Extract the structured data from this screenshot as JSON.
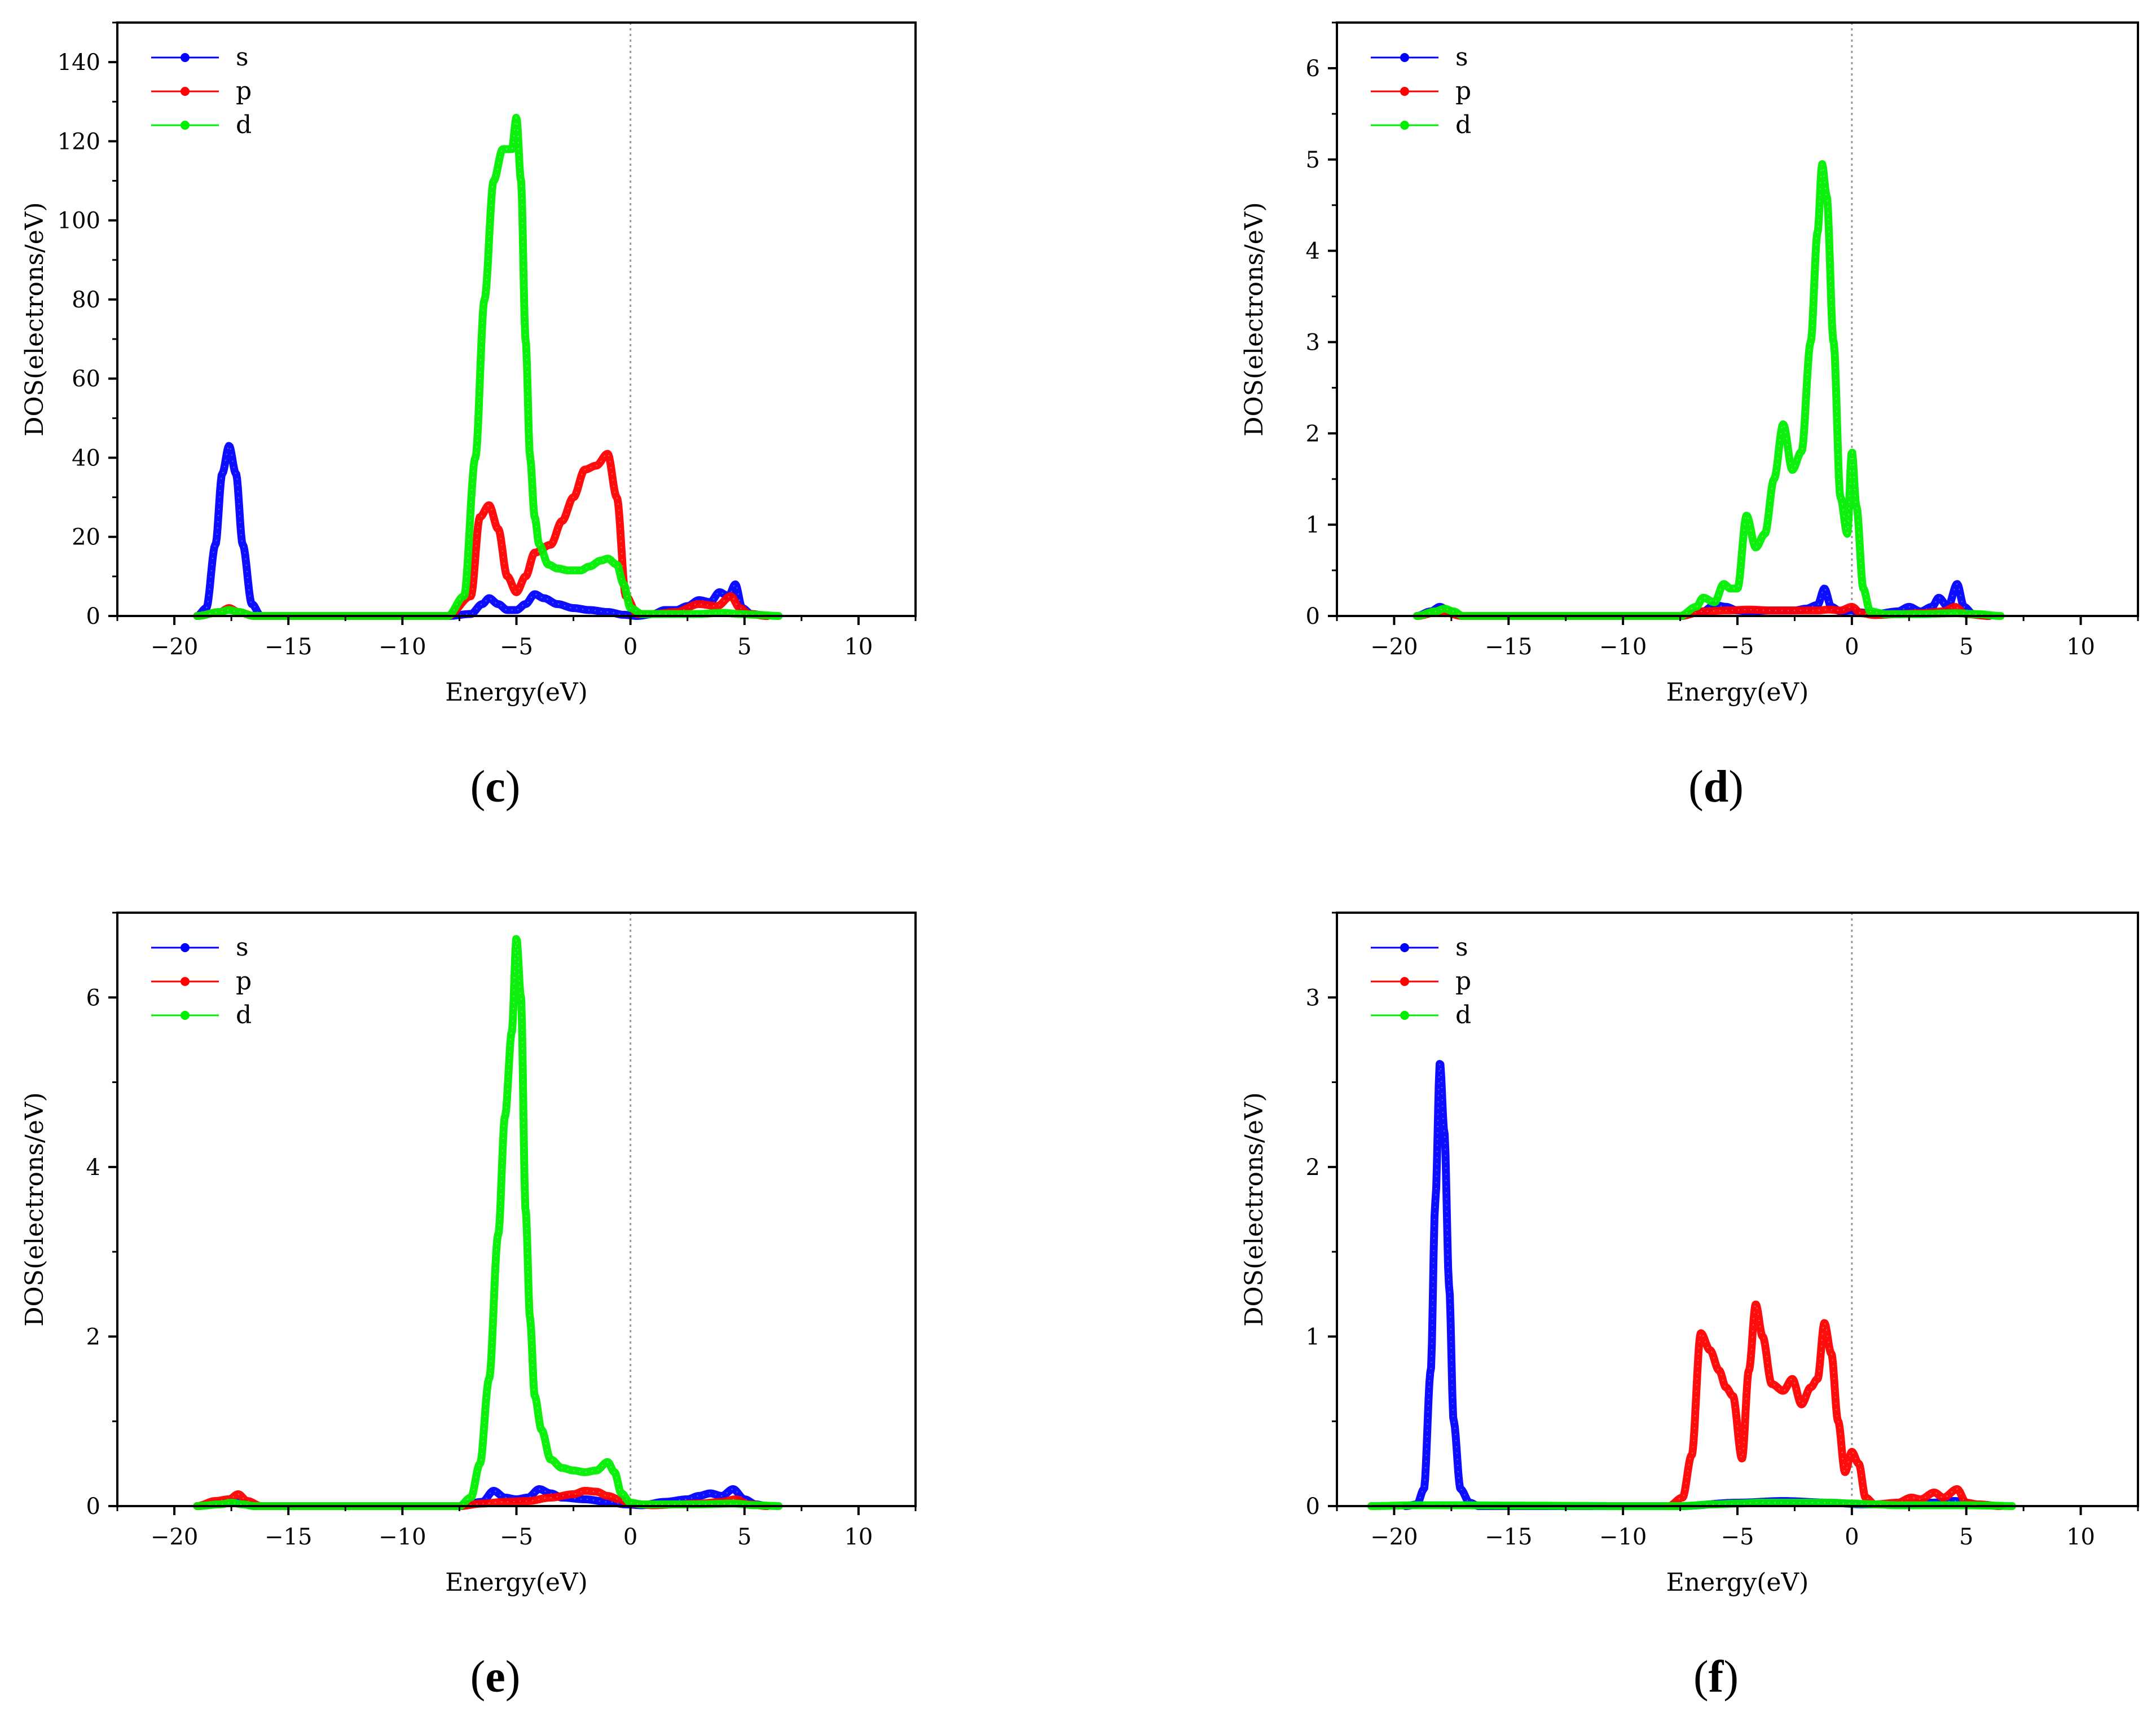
{
  "chart_data": [
    {
      "id": "c",
      "type": "line",
      "caption_letter": "c",
      "xlabel": "Energy(eV)",
      "ylabel": "DOS(electrons/eV)",
      "xlim": [
        -22.5,
        12.5
      ],
      "ylim": [
        0,
        150
      ],
      "xticks": [
        -20,
        -15,
        -10,
        -5,
        0,
        5,
        10
      ],
      "xtick_labels": [
        "−20",
        "−15",
        "−10",
        "−5",
        "0",
        "5",
        "10"
      ],
      "yticks": [
        0,
        20,
        40,
        60,
        80,
        100,
        120,
        140
      ],
      "ytick_labels": [
        "0",
        "20",
        "40",
        "60",
        "80",
        "100",
        "120",
        "140"
      ],
      "fermi_level": 0,
      "legend": [
        "s",
        "p",
        "d"
      ],
      "legend_position": "top-left",
      "series": [
        {
          "name": "s",
          "color": "#0000ff",
          "x": [
            -19,
            -18.6,
            -18.2,
            -17.9,
            -17.6,
            -17.3,
            -17.0,
            -16.6,
            -16.2,
            -8,
            -7,
            -6.5,
            -6.2,
            -5.8,
            -5.4,
            -5.0,
            -4.6,
            -4.2,
            -3.8,
            -3.2,
            -2.5,
            -1.8,
            -1.0,
            -0.3,
            0.3,
            1.0,
            1.5,
            2.0,
            2.5,
            3.0,
            3.5,
            3.9,
            4.3,
            4.6,
            4.9,
            5.3,
            6
          ],
          "values": [
            0,
            2,
            18,
            36,
            43,
            36,
            18,
            3,
            0,
            0,
            0.5,
            3,
            4.5,
            3,
            1.5,
            1.5,
            3,
            5.5,
            4.5,
            3,
            2,
            1.5,
            1,
            0.3,
            0,
            0.5,
            1.5,
            1.5,
            2.5,
            4,
            3.5,
            6,
            5,
            8,
            2,
            0.5,
            0
          ]
        },
        {
          "name": "p",
          "color": "#ff0000",
          "x": [
            -19,
            -18,
            -17.6,
            -17.2,
            -16.5,
            -8,
            -7,
            -6.6,
            -6.2,
            -5.8,
            -5.4,
            -5.0,
            -4.6,
            -4.2,
            -3.5,
            -3.0,
            -2.5,
            -2.0,
            -1.5,
            -1.0,
            -0.6,
            -0.2,
            0.3,
            1.0,
            2.0,
            3.0,
            3.8,
            4.4,
            4.8,
            5.2,
            6
          ],
          "values": [
            0,
            1,
            2,
            1,
            0,
            0,
            5,
            25,
            28,
            22,
            10,
            6,
            10,
            16,
            18,
            24,
            30,
            37,
            38,
            41,
            30,
            5,
            0.5,
            0.5,
            1,
            3,
            2.5,
            5,
            2,
            0.5,
            0
          ]
        },
        {
          "name": "d",
          "color": "#00ee00",
          "x": [
            -19,
            -18,
            -17.6,
            -17.2,
            -16.5,
            -8,
            -7.3,
            -6.8,
            -6.4,
            -6.0,
            -5.6,
            -5.2,
            -5.0,
            -4.8,
            -4.6,
            -4.4,
            -4.2,
            -4.0,
            -3.6,
            -3.2,
            -2.7,
            -2.2,
            -1.8,
            -1.3,
            -1.0,
            -0.6,
            -0.3,
            0.0,
            0.5,
            1.0,
            2.0,
            3.0,
            4.0,
            4.8,
            5.5,
            6.5
          ],
          "values": [
            0,
            1,
            1.5,
            1,
            0,
            0,
            5,
            40,
            80,
            110,
            118,
            118,
            126,
            110,
            70,
            40,
            25,
            18,
            13,
            12,
            11.5,
            11.5,
            12.5,
            14,
            14.5,
            13,
            8,
            2,
            0.5,
            0.5,
            0.5,
            0.5,
            0.8,
            0.5,
            0.3,
            0
          ]
        }
      ]
    },
    {
      "id": "d",
      "type": "line",
      "caption_letter": "d",
      "xlabel": "Energy(eV)",
      "ylabel": "DOS(electrons/eV)",
      "xlim": [
        -22.5,
        12.5
      ],
      "ylim": [
        0,
        6.5
      ],
      "xticks": [
        -20,
        -15,
        -10,
        -5,
        0,
        5,
        10
      ],
      "xtick_labels": [
        "−20",
        "−15",
        "−10",
        "−5",
        "0",
        "5",
        "10"
      ],
      "yticks": [
        0,
        1,
        2,
        3,
        4,
        5,
        6
      ],
      "ytick_labels": [
        "0",
        "1",
        "2",
        "3",
        "4",
        "5",
        "6"
      ],
      "fermi_level": 0,
      "legend": [
        "s",
        "p",
        "d"
      ],
      "legend_position": "top-left",
      "series": [
        {
          "name": "s",
          "color": "#0000ff",
          "x": [
            -19,
            -18.4,
            -18.0,
            -17.6,
            -17.0,
            -7.5,
            -6.5,
            -6.0,
            -5.5,
            -5.0,
            -4.5,
            -3.5,
            -2.5,
            -2.0,
            -1.5,
            -1.2,
            -0.9,
            -0.5,
            0.0,
            0.3,
            1.0,
            2.0,
            2.5,
            3.0,
            3.5,
            3.8,
            4.2,
            4.6,
            4.9,
            5.3,
            6
          ],
          "values": [
            0,
            0.05,
            0.1,
            0.05,
            0,
            0,
            0.05,
            0.12,
            0.1,
            0.06,
            0.05,
            0.06,
            0.06,
            0.08,
            0.12,
            0.3,
            0.1,
            0.05,
            0.06,
            0.04,
            0.02,
            0.05,
            0.1,
            0.05,
            0.1,
            0.2,
            0.1,
            0.35,
            0.1,
            0.02,
            0
          ]
        },
        {
          "name": "p",
          "color": "#ff0000",
          "x": [
            -19,
            -18.0,
            -17.0,
            -7.5,
            -6.5,
            -5.5,
            -4.5,
            -3.5,
            -2.5,
            -1.5,
            -1.0,
            -0.5,
            0.0,
            0.4,
            1.0,
            2.0,
            3.0,
            4.0,
            4.5,
            5.0,
            6
          ],
          "values": [
            0,
            0.05,
            0,
            0,
            0.05,
            0.06,
            0.07,
            0.06,
            0.06,
            0.06,
            0.07,
            0.06,
            0.1,
            0.03,
            0.01,
            0.02,
            0.03,
            0.05,
            0.1,
            0.02,
            0
          ]
        },
        {
          "name": "d",
          "color": "#00ee00",
          "x": [
            -19,
            -18.2,
            -17.8,
            -17.4,
            -17.0,
            -7.5,
            -6.8,
            -6.5,
            -6.0,
            -5.6,
            -5.3,
            -5.0,
            -4.6,
            -4.2,
            -3.8,
            -3.4,
            -3.0,
            -2.6,
            -2.2,
            -1.8,
            -1.5,
            -1.3,
            -1.1,
            -0.8,
            -0.5,
            -0.2,
            0.0,
            0.2,
            0.5,
            0.8,
            1.5,
            3.0,
            4.5,
            5.5,
            6.5
          ],
          "values": [
            0,
            0.05,
            0.08,
            0.05,
            0,
            0,
            0.1,
            0.2,
            0.15,
            0.35,
            0.3,
            0.3,
            1.1,
            0.75,
            0.9,
            1.5,
            2.1,
            1.6,
            1.8,
            3.0,
            4.2,
            4.95,
            4.6,
            3.0,
            1.3,
            0.9,
            1.8,
            1.2,
            0.3,
            0.05,
            0.02,
            0.02,
            0.03,
            0.02,
            0
          ]
        }
      ]
    },
    {
      "id": "e",
      "type": "line",
      "caption_letter": "e",
      "xlabel": "Energy(eV)",
      "ylabel": "DOS(electrons/eV)",
      "xlim": [
        -22.5,
        12.5
      ],
      "ylim": [
        0,
        7
      ],
      "xticks": [
        -20,
        -15,
        -10,
        -5,
        0,
        5,
        10
      ],
      "xtick_labels": [
        "−20",
        "−15",
        "−10",
        "−5",
        "0",
        "5",
        "10"
      ],
      "yticks": [
        0,
        2,
        4,
        6
      ],
      "ytick_labels": [
        "0",
        "2",
        "4",
        "6"
      ],
      "fermi_level": 0,
      "legend": [
        "s",
        "p",
        "d"
      ],
      "legend_position": "top-left",
      "series": [
        {
          "name": "s",
          "color": "#0000ff",
          "x": [
            -19,
            -18,
            -17.4,
            -17.0,
            -16.5,
            -7.5,
            -6.5,
            -6.0,
            -5.5,
            -5.0,
            -4.5,
            -4.0,
            -3.5,
            -3.0,
            -2.0,
            -1.0,
            -0.2,
            0.5,
            1.5,
            2.5,
            3.0,
            3.5,
            4.0,
            4.5,
            5.0,
            5.5,
            6
          ],
          "values": [
            0,
            0.03,
            0.05,
            0.03,
            0,
            0,
            0.05,
            0.18,
            0.1,
            0.08,
            0.1,
            0.2,
            0.15,
            0.1,
            0.08,
            0.05,
            0.02,
            0.01,
            0.05,
            0.08,
            0.12,
            0.15,
            0.12,
            0.2,
            0.08,
            0.02,
            0
          ]
        },
        {
          "name": "p",
          "color": "#ff0000",
          "x": [
            -19,
            -18.2,
            -17.6,
            -17.2,
            -16.8,
            -16.2,
            -7.5,
            -6.5,
            -5.5,
            -4.5,
            -3.5,
            -2.5,
            -2.0,
            -1.5,
            -1.0,
            -0.5,
            0.0,
            1.0,
            2.0,
            3.0,
            4.0,
            4.6,
            5.2,
            6
          ],
          "values": [
            0,
            0.06,
            0.08,
            0.14,
            0.06,
            0,
            0,
            0.03,
            0.05,
            0.06,
            0.1,
            0.14,
            0.18,
            0.17,
            0.12,
            0.08,
            0.03,
            0.01,
            0.02,
            0.03,
            0.05,
            0.08,
            0.02,
            0
          ]
        },
        {
          "name": "d",
          "color": "#00ee00",
          "x": [
            -19,
            -18,
            -17.5,
            -17.0,
            -16.5,
            -7.5,
            -7.0,
            -6.6,
            -6.2,
            -5.8,
            -5.5,
            -5.2,
            -5.0,
            -4.8,
            -4.6,
            -4.4,
            -4.2,
            -3.9,
            -3.5,
            -3.0,
            -2.5,
            -2.0,
            -1.5,
            -1.0,
            -0.7,
            -0.4,
            0.0,
            0.5,
            1.5,
            3.0,
            4.5,
            5.5,
            6.5
          ],
          "values": [
            0,
            0.02,
            0.04,
            0.02,
            0,
            0,
            0.1,
            0.5,
            1.5,
            3.2,
            4.6,
            5.6,
            6.7,
            6.0,
            3.5,
            2.2,
            1.3,
            0.9,
            0.55,
            0.45,
            0.42,
            0.4,
            0.42,
            0.52,
            0.4,
            0.15,
            0.04,
            0.02,
            0.02,
            0.02,
            0.03,
            0.01,
            0
          ]
        }
      ]
    },
    {
      "id": "f",
      "type": "line",
      "caption_letter": "f",
      "xlabel": "Energy(eV)",
      "ylabel": "DOS(electrons/eV)",
      "xlim": [
        -22.5,
        12.5
      ],
      "ylim": [
        0,
        3.5
      ],
      "xticks": [
        -20,
        -15,
        -10,
        -5,
        0,
        5,
        10
      ],
      "xtick_labels": [
        "−20",
        "−15",
        "−10",
        "−5",
        "0",
        "5",
        "10"
      ],
      "yticks": [
        0,
        1,
        2,
        3
      ],
      "ytick_labels": [
        "0",
        "1",
        "2",
        "3"
      ],
      "fermi_level": 0,
      "legend": [
        "s",
        "p",
        "d"
      ],
      "legend_position": "top-left",
      "series": [
        {
          "name": "s",
          "color": "#0000ff",
          "x": [
            -19.5,
            -19.0,
            -18.7,
            -18.4,
            -18.2,
            -18.0,
            -17.8,
            -17.6,
            -17.4,
            -17.1,
            -16.7,
            -16.3,
            -7.5,
            -5.0,
            -3.0,
            -1.0,
            0.5,
            2.0,
            3.5,
            4.5,
            5.5,
            6.5
          ],
          "values": [
            0,
            0.01,
            0.1,
            0.8,
            1.8,
            2.62,
            2.2,
            1.3,
            0.5,
            0.1,
            0.02,
            0,
            0,
            0.02,
            0.03,
            0.02,
            0.01,
            0.01,
            0.02,
            0.03,
            0.01,
            0
          ]
        },
        {
          "name": "p",
          "color": "#ff0000",
          "x": [
            -8,
            -7.4,
            -7.0,
            -6.6,
            -6.2,
            -5.8,
            -5.5,
            -5.2,
            -4.8,
            -4.5,
            -4.2,
            -3.9,
            -3.5,
            -3.0,
            -2.6,
            -2.2,
            -1.8,
            -1.5,
            -1.2,
            -0.9,
            -0.6,
            -0.3,
            0.0,
            0.3,
            0.6,
            1.0,
            2.0,
            2.6,
            3.0,
            3.6,
            4.0,
            4.6,
            5.0,
            5.5,
            6.5
          ],
          "values": [
            0,
            0.05,
            0.3,
            1.02,
            0.92,
            0.8,
            0.7,
            0.65,
            0.28,
            0.8,
            1.19,
            1.0,
            0.72,
            0.68,
            0.75,
            0.6,
            0.7,
            0.75,
            1.08,
            0.9,
            0.5,
            0.2,
            0.32,
            0.25,
            0.05,
            0.01,
            0.02,
            0.05,
            0.04,
            0.08,
            0.05,
            0.1,
            0.02,
            0.01,
            0
          ]
        },
        {
          "name": "d",
          "color": "#00ee00",
          "x": [
            -21,
            -19,
            -17,
            -15,
            -10,
            -7.5,
            -6.0,
            -5.0,
            -4.0,
            -3.0,
            -2.0,
            -1.0,
            0.0,
            1.0,
            2.0,
            3.0,
            4.0,
            5.0,
            6.0,
            7.0
          ],
          "values": [
            0,
            0.005,
            0.005,
            0.003,
            0,
            0,
            0.01,
            0.015,
            0.02,
            0.02,
            0.02,
            0.02,
            0.015,
            0.01,
            0.005,
            0.005,
            0.005,
            0.005,
            0.003,
            0
          ]
        }
      ]
    }
  ]
}
